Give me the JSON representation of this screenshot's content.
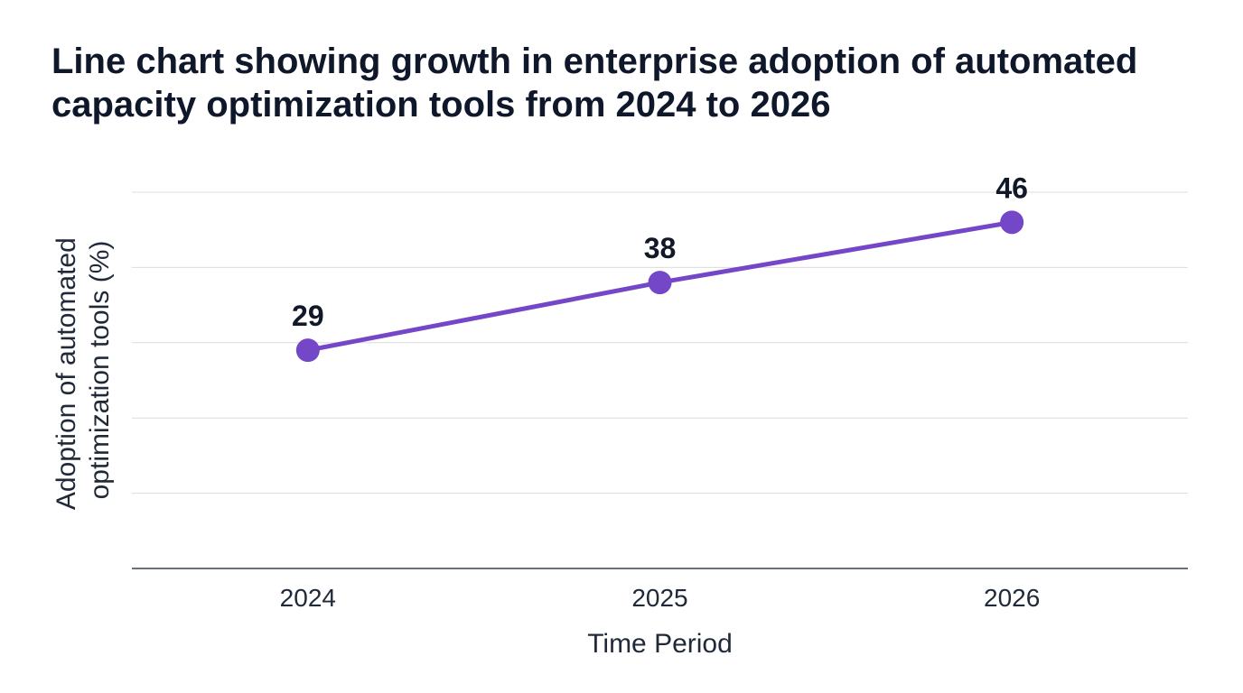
{
  "chart_data": {
    "type": "line",
    "title": "Line chart showing growth in enterprise adoption of automated capacity optimization tools from 2024 to 2026",
    "xlabel": "Time Period",
    "ylabel_lines": [
      "Adoption of automated",
      "optimization tools (%)"
    ],
    "categories": [
      "2024",
      "2025",
      "2026"
    ],
    "series": [
      {
        "values": [
          29,
          38,
          46
        ],
        "color": "#7447c8"
      }
    ],
    "ylim": [
      0,
      50
    ],
    "grid": true,
    "legend": "none",
    "colors": {
      "line": "#7447c8",
      "grid": "#dcdcdc",
      "axis": "#374151",
      "text": "#0f172a"
    }
  }
}
